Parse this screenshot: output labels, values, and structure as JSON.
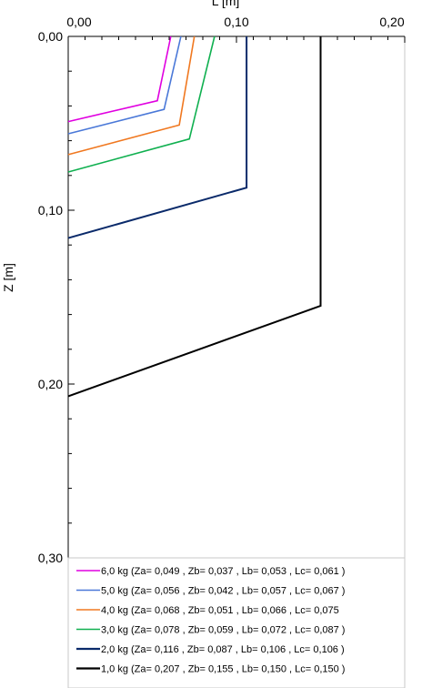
{
  "chart_data": {
    "type": "line",
    "xlabel": "L [m]",
    "ylabel": "Z [m]",
    "xlim": [
      0,
      0.2
    ],
    "ylim": [
      0,
      0.3
    ],
    "y_inverted": true,
    "x_axis_position": "top",
    "x_ticks": [
      "0,00",
      "0,10",
      "0,20"
    ],
    "y_ticks": [
      "0,00",
      "0,10",
      "0,20",
      "0,30"
    ],
    "grid": true,
    "legend_position": "bottom",
    "series": [
      {
        "name": "6,0 kg (Za= 0,049 , Zb= 0,037 , Lb= 0,053 , Lc= 0,061 )",
        "color": "#e000e0",
        "points": [
          [
            0,
            0.049
          ],
          [
            0.053,
            0.037
          ],
          [
            0.061,
            0
          ]
        ]
      },
      {
        "name": "5,0 kg (Za= 0,056 , Zb= 0,042 , Lb= 0,057 , Lc= 0,067 )",
        "color": "#4a78d8",
        "points": [
          [
            0,
            0.056
          ],
          [
            0.057,
            0.042
          ],
          [
            0.067,
            0
          ]
        ]
      },
      {
        "name": "4,0 kg (Za= 0,068 , Zb= 0,051 , Lb= 0,066 , Lc= 0,075",
        "color": "#f07820",
        "points": [
          [
            0,
            0.068
          ],
          [
            0.066,
            0.051
          ],
          [
            0.075,
            0
          ]
        ]
      },
      {
        "name": "3,0 kg (Za= 0,078 , Zb= 0,059 , Lb= 0,072 , Lc= 0,087 )",
        "color": "#10b050",
        "points": [
          [
            0,
            0.078
          ],
          [
            0.072,
            0.059
          ],
          [
            0.087,
            0
          ]
        ]
      },
      {
        "name": "2,0 kg (Za= 0,116 , Zb= 0,087 , Lb= 0,106 , Lc= 0,106 )",
        "color": "#0a2a6a",
        "points": [
          [
            0,
            0.116
          ],
          [
            0.106,
            0.087
          ],
          [
            0.106,
            0
          ]
        ]
      },
      {
        "name": "1,0 kg (Za= 0,207 , Zb= 0,155 , Lb= 0,150 , Lc= 0,150 )",
        "color": "#000000",
        "points": [
          [
            0,
            0.207
          ],
          [
            0.15,
            0.155
          ],
          [
            0.15,
            0
          ]
        ]
      }
    ]
  }
}
